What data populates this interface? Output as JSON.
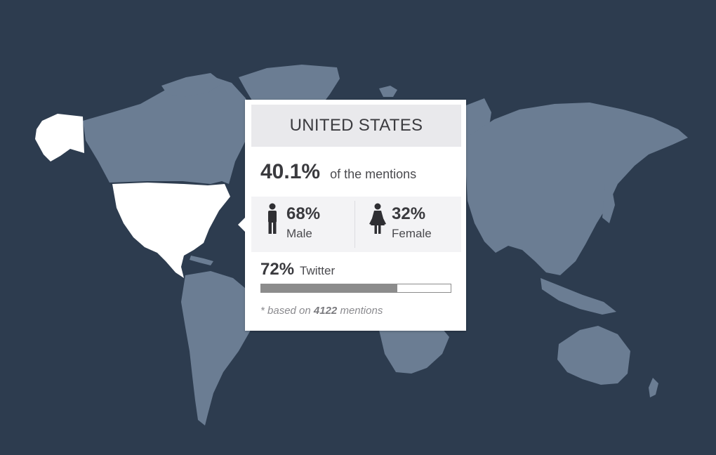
{
  "map": {
    "ocean_color": "#2d3c4f",
    "land_color": "#6b7d93",
    "selected_color": "#ffffff",
    "selected_region": "united-states"
  },
  "tooltip": {
    "country": "UNITED STATES",
    "mentions_pct": "40.1%",
    "mentions_label": "of the mentions",
    "male": {
      "pct": "68%",
      "label": "Male",
      "icon": "male-icon"
    },
    "female": {
      "pct": "32%",
      "label": "Female",
      "icon": "female-icon"
    },
    "twitter": {
      "pct": "72%",
      "label": "Twitter",
      "fraction": 0.72
    },
    "footnote": {
      "prefix": "* based on",
      "count": "4122",
      "suffix": "mentions"
    }
  }
}
